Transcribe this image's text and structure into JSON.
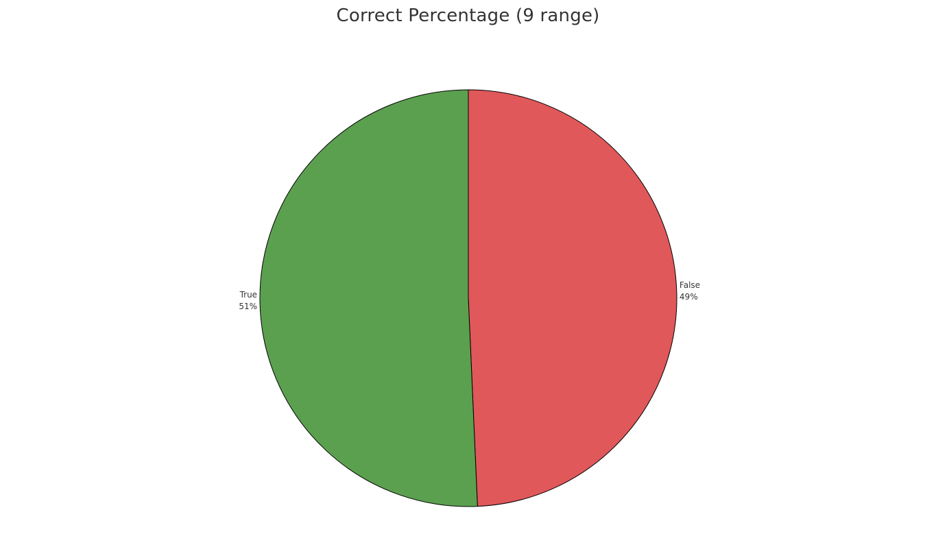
{
  "chart_data": {
    "type": "pie",
    "title": "Correct Percentage (9 range)",
    "slices": [
      {
        "label": "False",
        "percent_label": "49%",
        "value": 49.3,
        "color": "#e0585a"
      },
      {
        "label": "True",
        "percent_label": "51%",
        "value": 50.7,
        "color": "#5ba04f"
      }
    ],
    "start": "12 o'clock",
    "direction": "clockwise",
    "legend": "none"
  }
}
